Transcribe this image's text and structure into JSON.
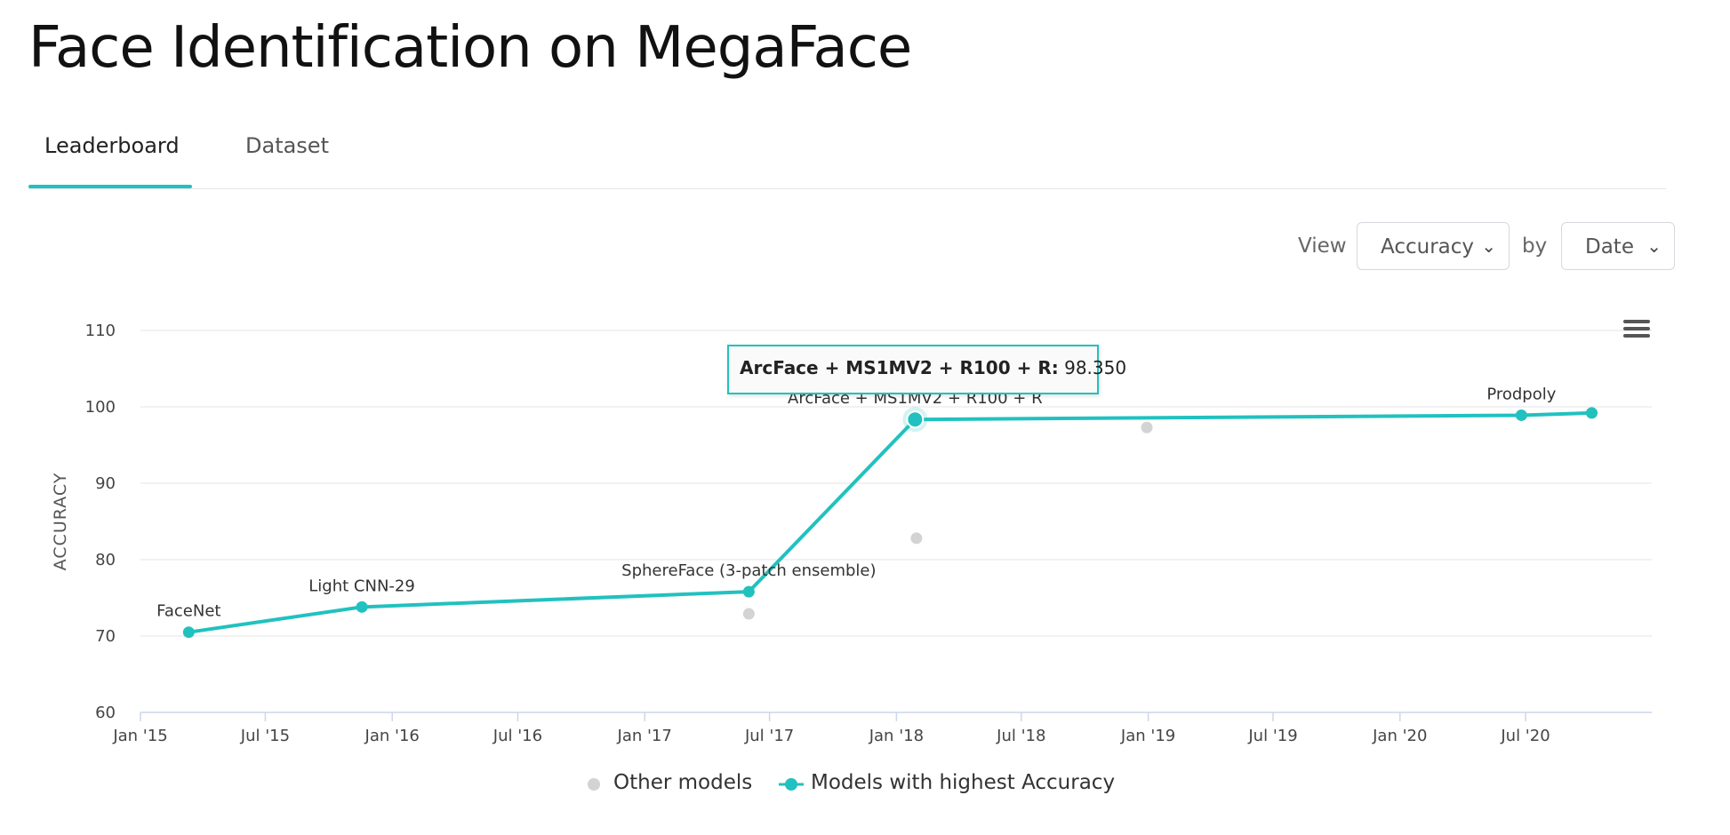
{
  "page": {
    "title": "Face Identification on MegaFace",
    "tabs": [
      "Leaderboard",
      "Dataset"
    ]
  },
  "controls": {
    "view_label": "View",
    "view_value": "Accuracy",
    "by_label": "by",
    "by_value": "Date"
  },
  "tooltip": {
    "model": "ArcFace + MS1MV2 + R100 + R",
    "value": "98.350"
  },
  "colors": {
    "accent": "#21c1bf",
    "other_models": "#d3d3d3",
    "grid": "#e6e6e6"
  },
  "icons": {
    "menu": "hamburger-menu-icon",
    "dropdown": "chevron-down-icon"
  },
  "chart_data": {
    "type": "line",
    "ylabel": "ACCURACY",
    "xlabel": "",
    "ylim": [
      60,
      110
    ],
    "yticks": [
      60,
      70,
      80,
      90,
      100,
      110
    ],
    "xlim": [
      "2015-01-01",
      "2020-12-31"
    ],
    "xticks": [
      {
        "date": "2015-01-01",
        "label": "Jan '15"
      },
      {
        "date": "2015-07-01",
        "label": "Jul '15"
      },
      {
        "date": "2016-01-01",
        "label": "Jan '16"
      },
      {
        "date": "2016-07-01",
        "label": "Jul '16"
      },
      {
        "date": "2017-01-01",
        "label": "Jan '17"
      },
      {
        "date": "2017-07-01",
        "label": "Jul '17"
      },
      {
        "date": "2018-01-01",
        "label": "Jan '18"
      },
      {
        "date": "2018-07-01",
        "label": "Jul '18"
      },
      {
        "date": "2019-01-01",
        "label": "Jan '19"
      },
      {
        "date": "2019-07-01",
        "label": "Jul '19"
      },
      {
        "date": "2020-01-01",
        "label": "Jan '20"
      },
      {
        "date": "2020-07-01",
        "label": "Jul '20"
      }
    ],
    "grid": true,
    "legend_position": "bottom-center",
    "series": [
      {
        "name": "Other models",
        "kind": "scatter",
        "points": [
          {
            "date": "2017-06-01",
            "y": 72.9
          },
          {
            "date": "2018-01-30",
            "y": 82.8
          },
          {
            "date": "2018-12-30",
            "y": 97.3
          }
        ]
      },
      {
        "name": "Models with highest Accuracy",
        "kind": "line",
        "points": [
          {
            "date": "2015-03-12",
            "y": 70.5,
            "label": "FaceNet"
          },
          {
            "date": "2015-11-18",
            "y": 73.8,
            "label": "Light CNN-29"
          },
          {
            "date": "2017-06-01",
            "y": 75.8,
            "label": "SphereFace (3-patch ensemble)"
          },
          {
            "date": "2018-01-28",
            "y": 98.35,
            "label": "ArcFace + MS1MV2 + R100 + R"
          },
          {
            "date": "2020-06-25",
            "y": 98.9,
            "label": "Prodpoly"
          },
          {
            "date": "2020-10-05",
            "y": 99.2
          }
        ]
      }
    ]
  }
}
